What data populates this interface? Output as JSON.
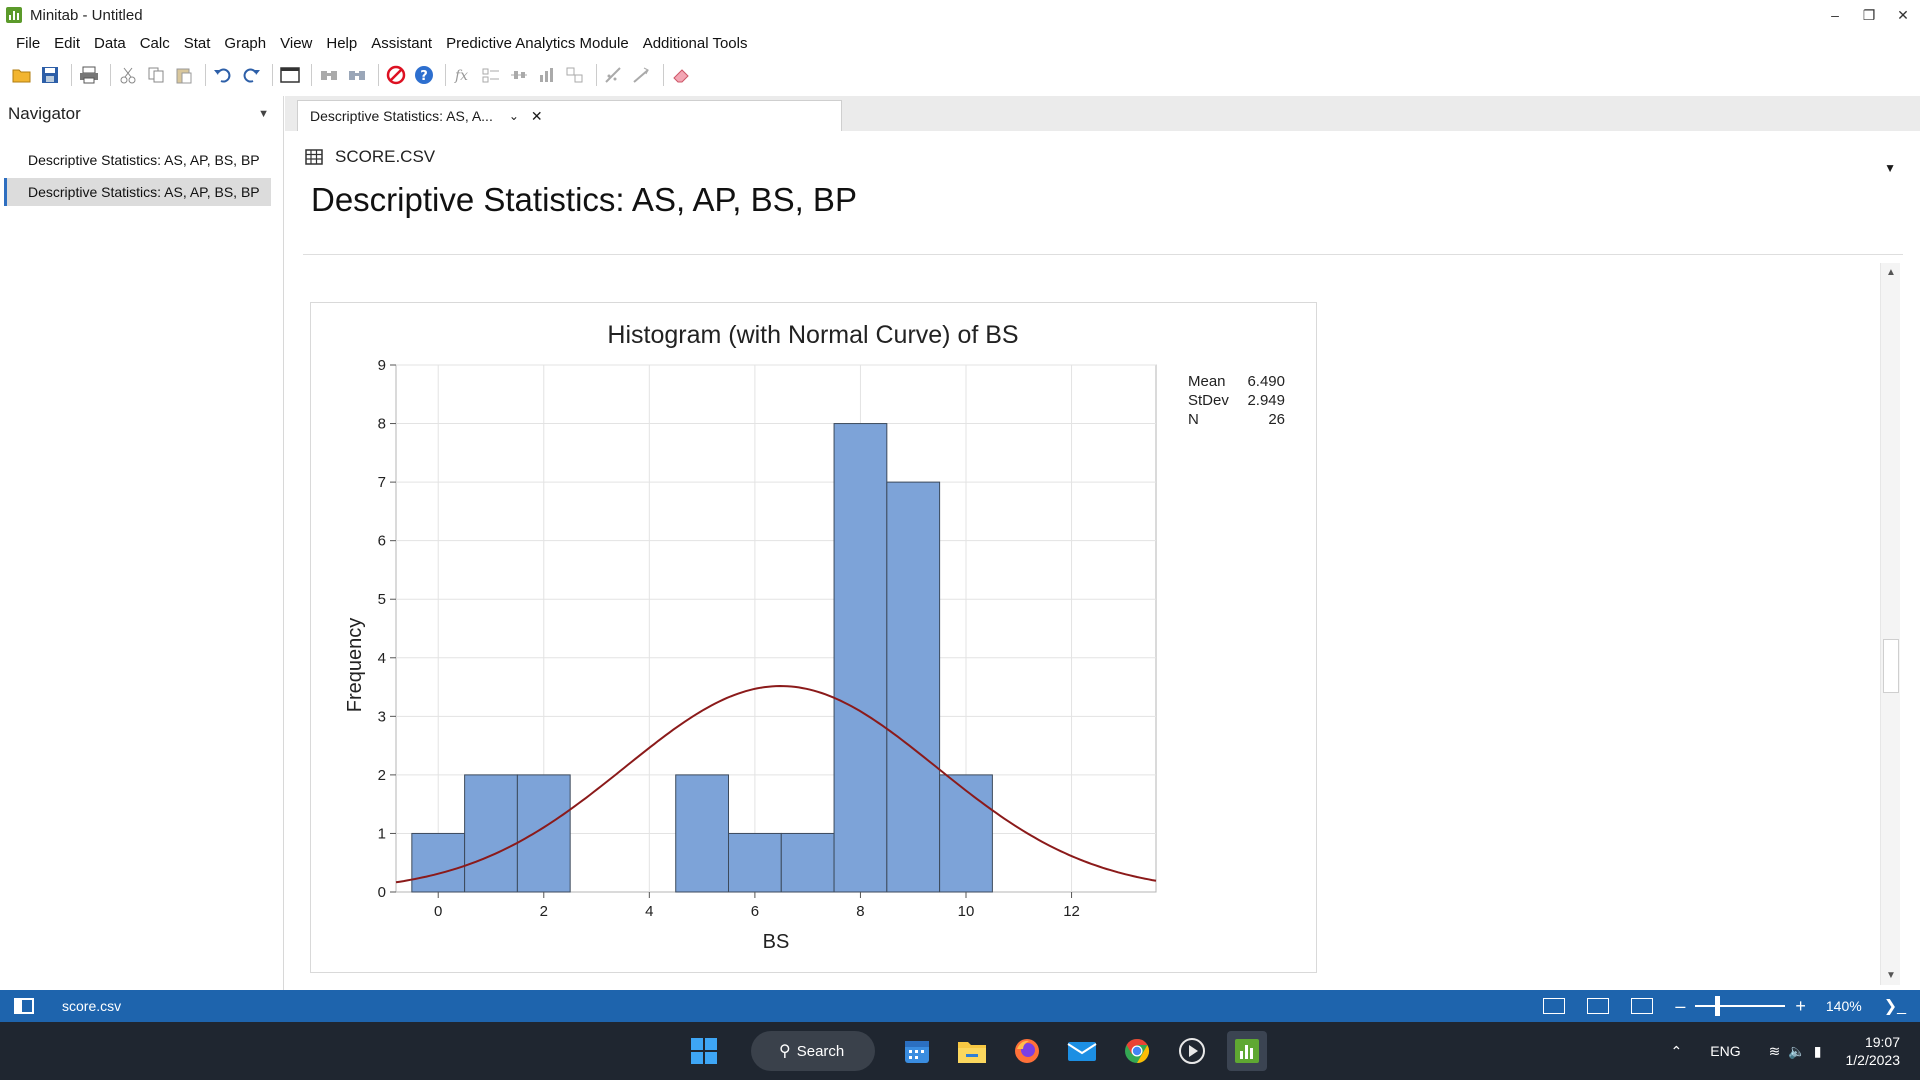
{
  "window": {
    "title": "Minitab - Untitled"
  },
  "menu": [
    "File",
    "Edit",
    "Data",
    "Calc",
    "Stat",
    "Graph",
    "View",
    "Help",
    "Assistant",
    "Predictive Analytics Module",
    "Additional Tools"
  ],
  "navigator": {
    "title": "Navigator",
    "items": [
      "Descriptive Statistics: AS, AP, BS, BP",
      "Descriptive Statistics: AS, AP, BS, BP"
    ]
  },
  "tab": {
    "label": "Descriptive Statistics: AS, A..."
  },
  "content": {
    "file": "SCORE.CSV",
    "title": "Descriptive Statistics: AS, AP, BS, BP"
  },
  "stats": {
    "labels": [
      "Mean",
      "StDev",
      "N"
    ],
    "values": [
      "6.490",
      "2.949",
      "26"
    ]
  },
  "chart_data": {
    "type": "bar",
    "title": "Histogram (with Normal Curve) of BS",
    "xlabel": "BS",
    "ylabel": "Frequency",
    "xlim": [
      -0.8,
      13.6
    ],
    "ylim": [
      0,
      9
    ],
    "x_ticks": [
      0,
      2,
      4,
      6,
      8,
      10,
      12
    ],
    "y_ticks": [
      0,
      1,
      2,
      3,
      4,
      5,
      6,
      7,
      8,
      9
    ],
    "bin_width": 1,
    "bins": [
      {
        "center": 0,
        "value": 1
      },
      {
        "center": 1,
        "value": 2
      },
      {
        "center": 2,
        "value": 2
      },
      {
        "center": 3,
        "value": 0
      },
      {
        "center": 4,
        "value": 0
      },
      {
        "center": 5,
        "value": 2
      },
      {
        "center": 6,
        "value": 1
      },
      {
        "center": 7,
        "value": 1
      },
      {
        "center": 8,
        "value": 8
      },
      {
        "center": 9,
        "value": 7
      },
      {
        "center": 10,
        "value": 2
      }
    ],
    "normal_curve": {
      "mean": 6.49,
      "stdev": 2.949,
      "n": 26
    },
    "colors": {
      "bar": "#7da3d8",
      "bar_edge": "#3c4a5c",
      "curve": "#8b1a1a",
      "grid": "#e3e3e3"
    },
    "grid": true
  },
  "statusbar": {
    "file": "score.csv",
    "zoom": "140%"
  },
  "taskbar": {
    "search": "Search"
  },
  "tray": {
    "lang": "ENG",
    "time": "19:07",
    "date": "1/2/2023"
  }
}
